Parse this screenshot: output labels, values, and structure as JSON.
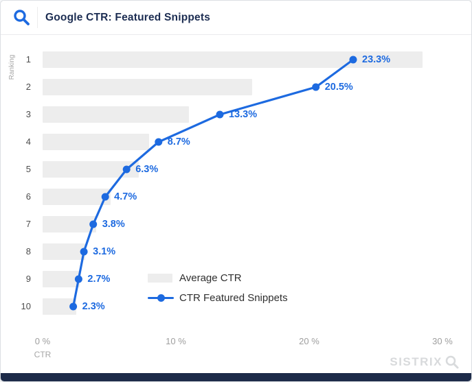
{
  "header": {
    "title": "Google CTR: Featured Snippets"
  },
  "colors": {
    "accent_blue": "#1d6ae0",
    "title_navy": "#1c2d52",
    "bar_gray": "#ededed",
    "axis_gray": "#9e9e9e",
    "footer_navy": "#1d2b49",
    "logo_gray": "#d8dadc"
  },
  "icons": {
    "header_icon": "search-icon",
    "brand_icon": "search-icon"
  },
  "chart_data": {
    "type": "bar",
    "subtype": "horizontal-bars-with-line-overlay",
    "title": "Google CTR: Featured Snippets",
    "xlabel": "CTR",
    "ylabel": "Ranking",
    "categories": [
      "1",
      "2",
      "3",
      "4",
      "5",
      "6",
      "7",
      "8",
      "9",
      "10"
    ],
    "series": [
      {
        "name": "Average CTR",
        "type": "bar",
        "values": [
          28.5,
          15.7,
          11.0,
          8.0,
          7.2,
          5.1,
          4.0,
          3.2,
          2.8,
          2.5
        ]
      },
      {
        "name": "CTR Featured Snippets",
        "type": "line",
        "values": [
          23.3,
          20.5,
          13.3,
          8.7,
          6.3,
          4.7,
          3.8,
          3.1,
          2.7,
          2.3
        ],
        "point_labels": [
          "23.3%",
          "20.5%",
          "13.3%",
          "8.7%",
          "6.3%",
          "4.7%",
          "3.8%",
          "3.1%",
          "2.7%",
          "2.3%"
        ]
      }
    ],
    "x_ticks": [
      {
        "value": 0,
        "label": "0 %"
      },
      {
        "value": 10,
        "label": "10 %"
      },
      {
        "value": 20,
        "label": "20 %"
      },
      {
        "value": 30,
        "label": "30 %"
      }
    ],
    "xlim": [
      0,
      32
    ],
    "grid": false,
    "legend_position": "inside-bottom-center"
  },
  "footer": {
    "brand": "SISTRIX"
  }
}
